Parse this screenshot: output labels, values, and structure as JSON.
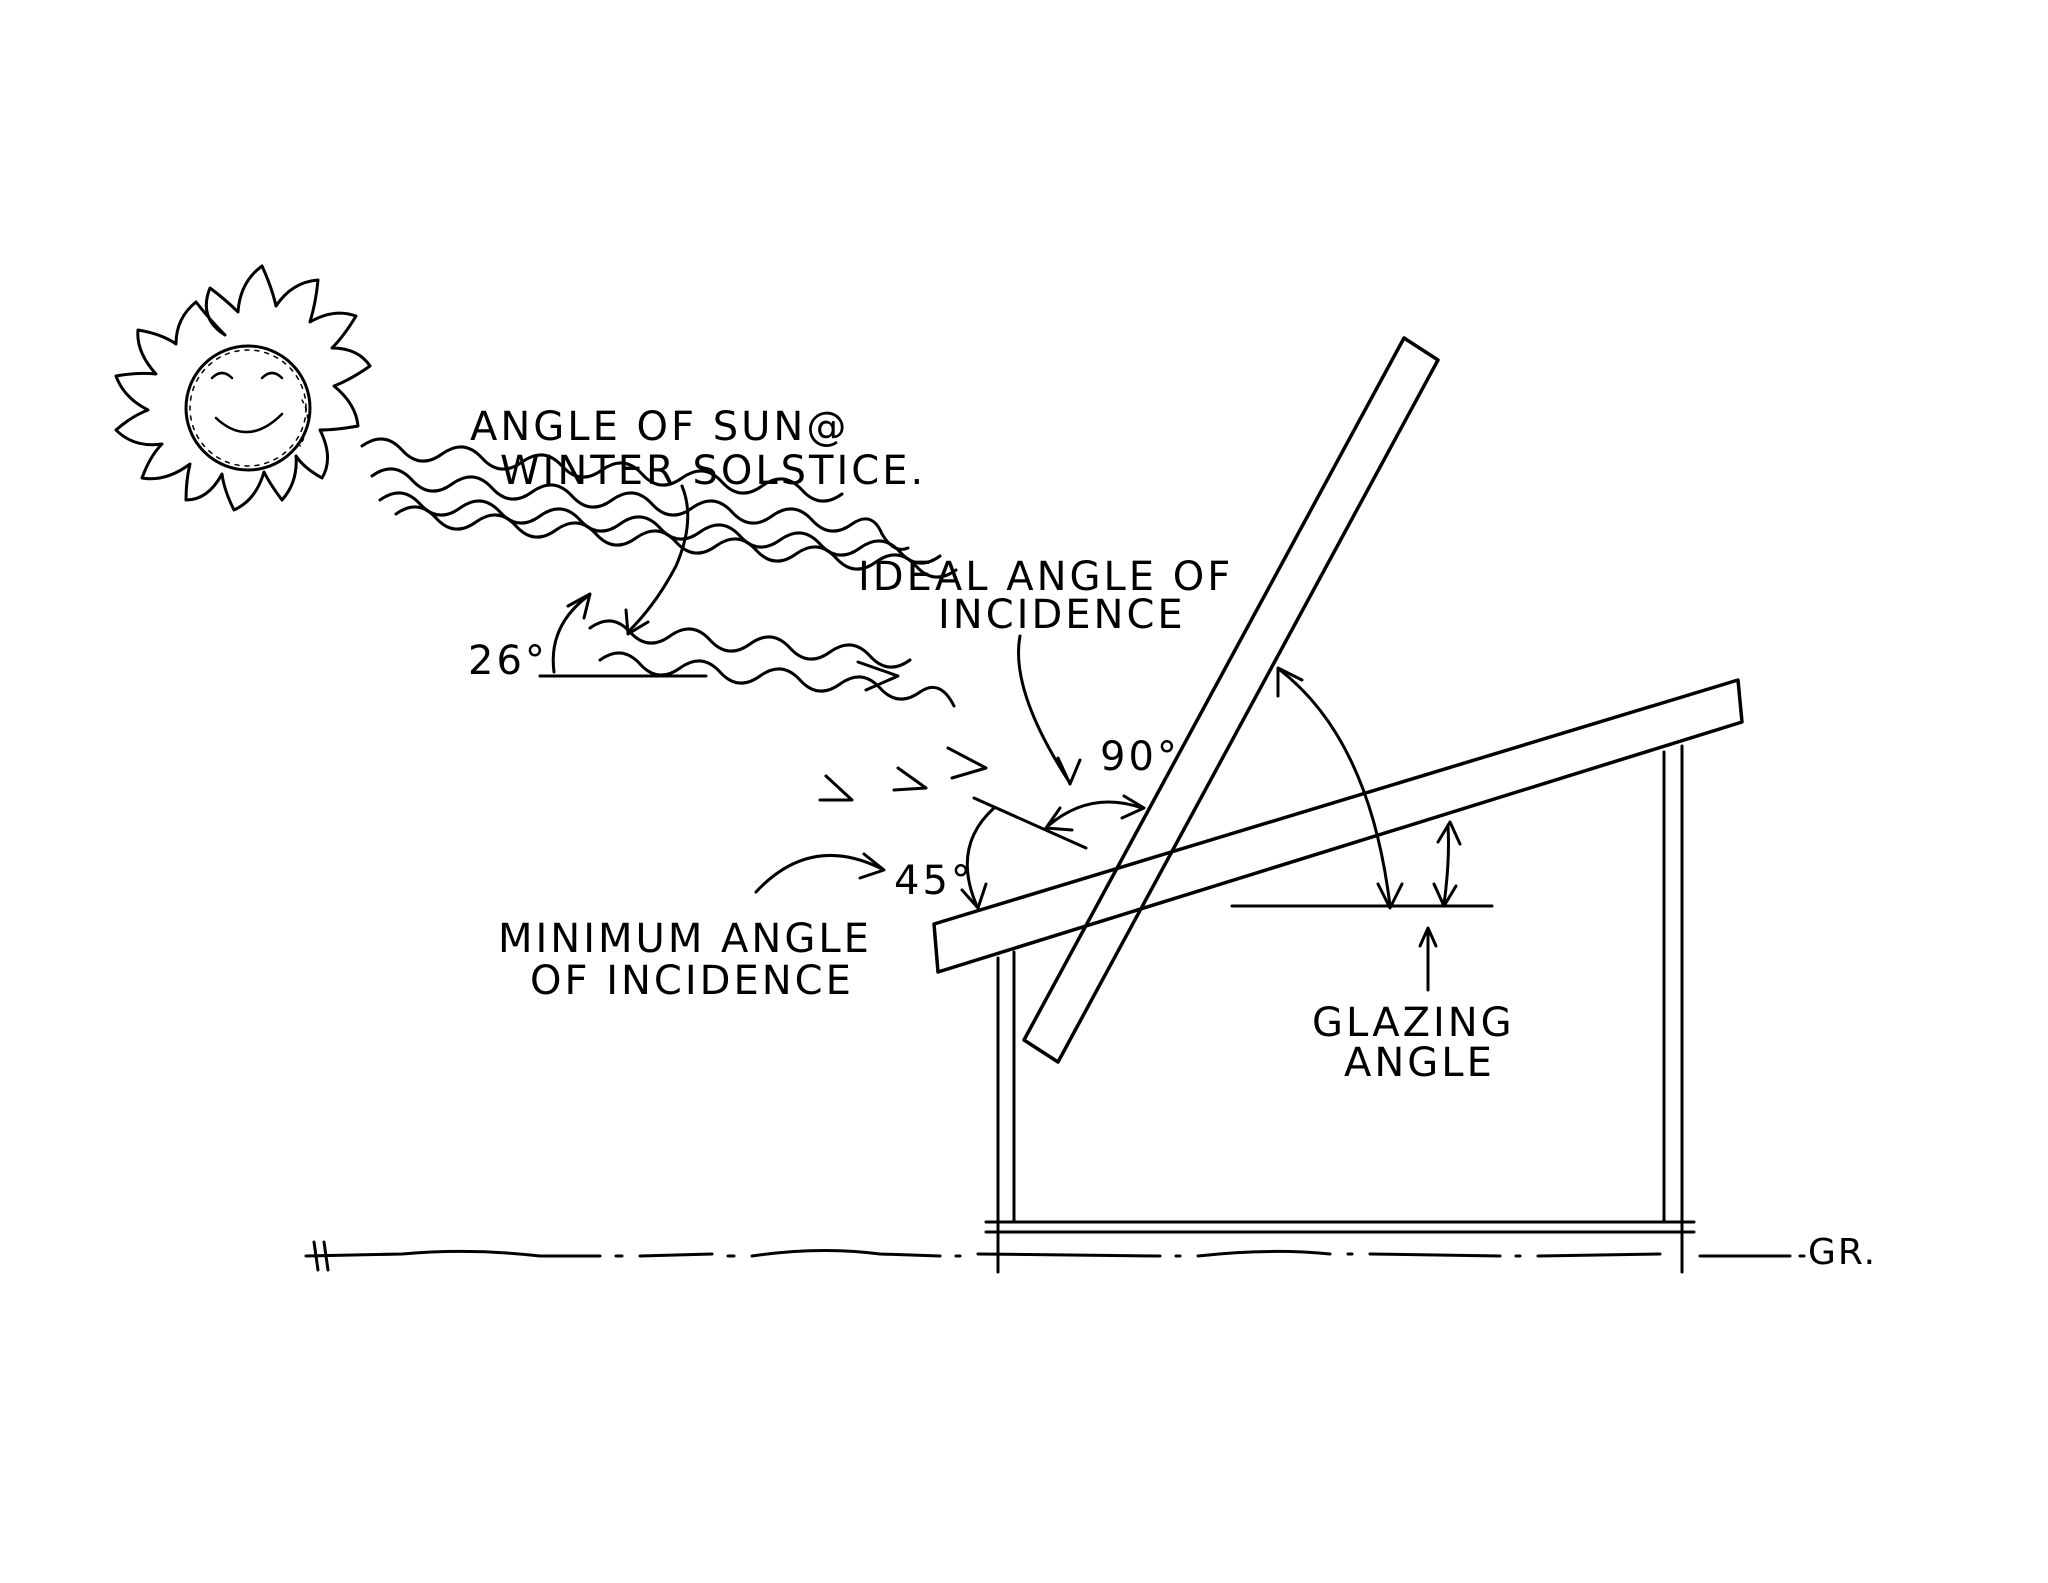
{
  "labels": {
    "sun_angle_line1": "ANGLE OF SUN@",
    "sun_angle_line2": "WINTER SOLSTICE.",
    "ideal_line1": "IDEAL ANGLE OF",
    "ideal_line2": "INCIDENCE",
    "minimum_line1": "MINIMUM ANGLE",
    "minimum_line2": "OF INCIDENCE",
    "glazing_line1": "GLAZING",
    "glazing_line2": "ANGLE",
    "angle_sun": "26°",
    "angle_ideal": "90°",
    "angle_minimum": "45°",
    "signature": "GR."
  },
  "colors": {
    "ink": "#000000",
    "paper": "#ffffff"
  }
}
